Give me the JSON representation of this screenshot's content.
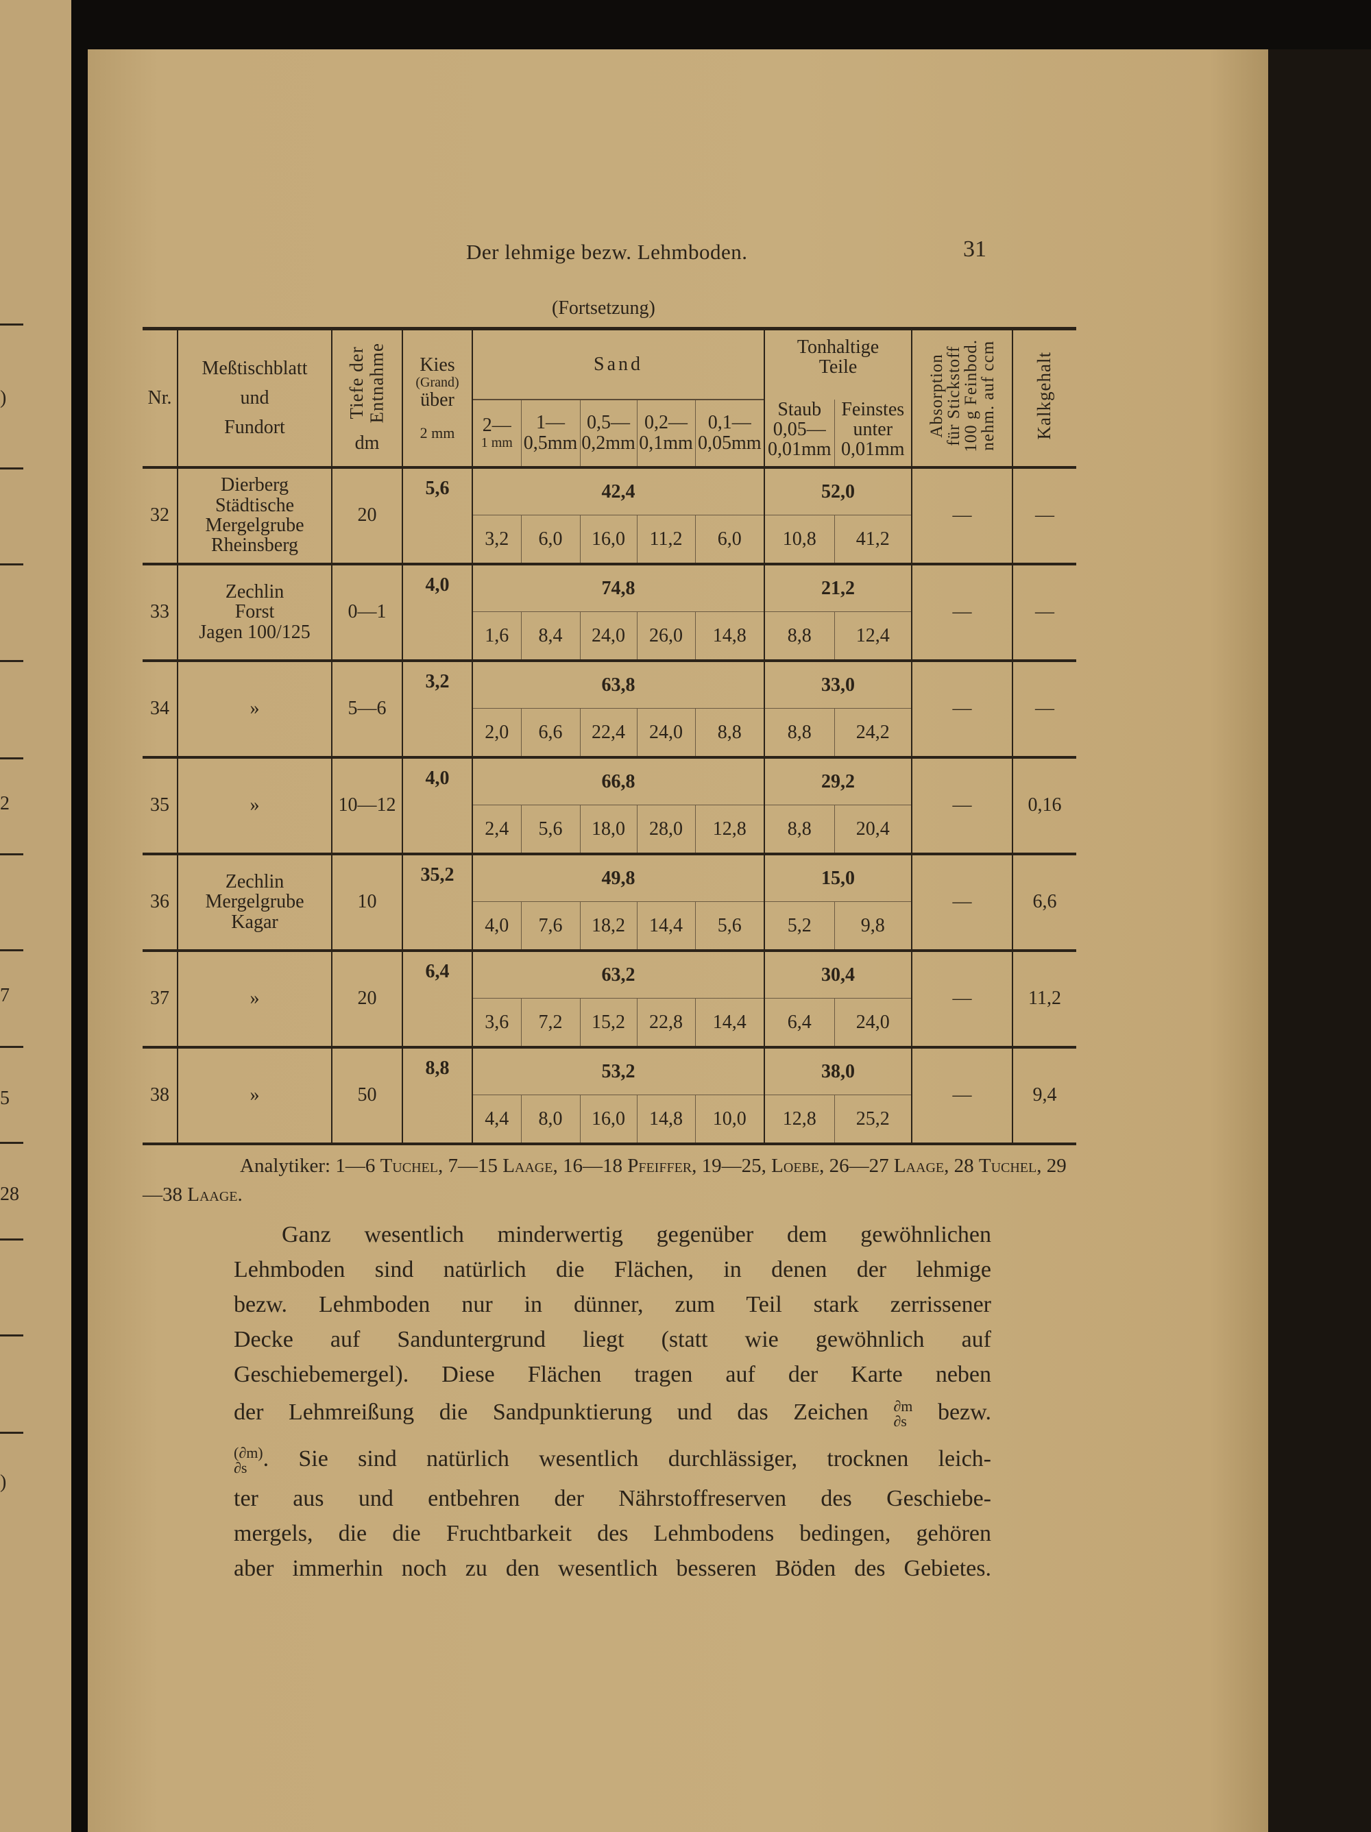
{
  "left_page_fragments": [
    ")",
    "2",
    "7",
    "5",
    "28",
    ")"
  ],
  "header": {
    "running_title": "Der lehmige bezw. Lehmboden.",
    "page_number": "31",
    "continuation": "(Fortsetzung)"
  },
  "table": {
    "headers": {
      "nr": "Nr.",
      "place": [
        "Meßtischblatt",
        "und",
        "Fundort"
      ],
      "depth": [
        "Tiefe der",
        "Entnahme"
      ],
      "depth_unit": "dm",
      "kies": [
        "Kies",
        "(Grand)",
        "über"
      ],
      "kies_unit": "2 mm",
      "sand": "Sand",
      "sand_fractions": [
        [
          "2—",
          "1 mm"
        ],
        [
          "1—",
          "0,5mm"
        ],
        [
          "0,5—",
          "0,2mm"
        ],
        [
          "0,2—",
          "0,1mm"
        ],
        [
          "0,1—",
          "0,05mm"
        ]
      ],
      "ton": [
        "Tonhaltige",
        "Teile"
      ],
      "ton_fractions": [
        [
          "Staub",
          "0,05—",
          "0,01mm"
        ],
        [
          "Feinstes",
          "unter",
          "0,01mm"
        ]
      ],
      "absorption": [
        "Absorption",
        "für Stickstoff",
        "100 g Feinbod.",
        "nehm. auf ccm"
      ],
      "kalk": "Kalkgehalt"
    },
    "rows": [
      {
        "nr": "32",
        "place": [
          "Dierberg",
          "Städtische",
          "Mergelgrube",
          "Rheinsberg"
        ],
        "depth": "20",
        "kies": "5,6",
        "sand_total": "42,4",
        "sand": [
          "3,2",
          "6,0",
          "16,0",
          "11,2",
          "6,0"
        ],
        "ton_total": "52,0",
        "ton": [
          "10,8",
          "41,2"
        ],
        "absorption": "—",
        "kalk": "—"
      },
      {
        "nr": "33",
        "place": [
          "Zechlin",
          "Forst",
          "Jagen 100/125"
        ],
        "depth": "0—1",
        "kies": "4,0",
        "sand_total": "74,8",
        "sand": [
          "1,6",
          "8,4",
          "24,0",
          "26,0",
          "14,8"
        ],
        "ton_total": "21,2",
        "ton": [
          "8,8",
          "12,4"
        ],
        "absorption": "—",
        "kalk": "—"
      },
      {
        "nr": "34",
        "place": [
          "»"
        ],
        "depth": "5—6",
        "kies": "3,2",
        "sand_total": "63,8",
        "sand": [
          "2,0",
          "6,6",
          "22,4",
          "24,0",
          "8,8"
        ],
        "ton_total": "33,0",
        "ton": [
          "8,8",
          "24,2"
        ],
        "absorption": "—",
        "kalk": "—"
      },
      {
        "nr": "35",
        "place": [
          "»"
        ],
        "depth": "10—12",
        "kies": "4,0",
        "sand_total": "66,8",
        "sand": [
          "2,4",
          "5,6",
          "18,0",
          "28,0",
          "12,8"
        ],
        "ton_total": "29,2",
        "ton": [
          "8,8",
          "20,4"
        ],
        "absorption": "—",
        "kalk": "0,16"
      },
      {
        "nr": "36",
        "place": [
          "Zechlin",
          "Mergelgrube",
          "Kagar"
        ],
        "depth": "10",
        "kies": "35,2",
        "sand_total": "49,8",
        "sand": [
          "4,0",
          "7,6",
          "18,2",
          "14,4",
          "5,6"
        ],
        "ton_total": "15,0",
        "ton": [
          "5,2",
          "9,8"
        ],
        "absorption": "—",
        "kalk": "6,6"
      },
      {
        "nr": "37",
        "place": [
          "»"
        ],
        "depth": "20",
        "kies": "6,4",
        "sand_total": "63,2",
        "sand": [
          "3,6",
          "7,2",
          "15,2",
          "22,8",
          "14,4"
        ],
        "ton_total": "30,4",
        "ton": [
          "6,4",
          "24,0"
        ],
        "absorption": "—",
        "kalk": "11,2"
      },
      {
        "nr": "38",
        "place": [
          "»"
        ],
        "depth": "50",
        "kies": "8,8",
        "sand_total": "53,2",
        "sand": [
          "4,4",
          "8,0",
          "16,0",
          "14,8",
          "10,0"
        ],
        "ton_total": "38,0",
        "ton": [
          "12,8",
          "25,2"
        ],
        "absorption": "—",
        "kalk": "9,4"
      }
    ]
  },
  "footnote": [
    {
      "text": "Analytiker: 1—6 ",
      "sc": false
    },
    {
      "text": "Tuchel",
      "sc": true
    },
    {
      "text": ", 7—15 ",
      "sc": false
    },
    {
      "text": "Laage",
      "sc": true
    },
    {
      "text": ", 16—18 ",
      "sc": false
    },
    {
      "text": "Pfeiffer",
      "sc": true
    },
    {
      "text": ", 19—25, ",
      "sc": false
    },
    {
      "text": "Loebe",
      "sc": true
    },
    {
      "text": ", 26—27 ",
      "sc": false
    },
    {
      "text": "Laage",
      "sc": true
    },
    {
      "text": ", 28 ",
      "sc": false
    },
    {
      "text": "Tuchel",
      "sc": true
    },
    {
      "text": ", 29—38 ",
      "sc": false
    },
    {
      "text": "Laage",
      "sc": true
    },
    {
      "text": ".",
      "sc": false
    }
  ],
  "paragraph": {
    "lines": [
      "Ganz wesentlich minderwertig gegenüber dem gewöhnlichen",
      "Lehmboden sind natürlich die Flächen, in denen der lehmige",
      "bezw. Lehmboden nur in dünner, zum Teil stark zerrissener",
      "Decke auf Sanduntergrund liegt (statt wie gewöhnlich auf",
      "Geschiebemergel). Diese Flächen tragen auf der Karte neben",
      "der Lehmreißung die Sandpunktierung und das Zeichen",
      "bezw.",
      ". Sie sind natürlich wesentlich durchlässiger, trocknen leich-",
      "ter aus und entbehren der Nährstoffreserven des Geschiebe-",
      "mergels, die die Fruchtbarkeit des Lehmbodens bedingen, gehören",
      "aber immerhin noch zu den wesentlich besseren Böden des Gebietes."
    ],
    "symbol1": {
      "num": "∂m",
      "den": "∂s"
    },
    "symbol2": {
      "num": "(∂m)",
      "den": "∂s"
    }
  }
}
